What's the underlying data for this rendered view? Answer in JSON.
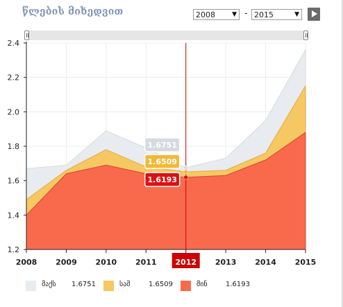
{
  "header": {
    "title": "წლების მიხედვით",
    "from_year": "2008",
    "to_year": "2015",
    "range_sep": "-",
    "play_icon": "play-icon"
  },
  "colors": {
    "max": "#e8ebf0",
    "avg": "#f5c863",
    "min": "#f96a4c",
    "marker": "#cc0000"
  },
  "chart_data": {
    "type": "area",
    "x": [
      2008,
      2009,
      2010,
      2011,
      2012,
      2013,
      2014,
      2015
    ],
    "xtick_labels": [
      "2008",
      "2009",
      "2010",
      "2011",
      "2012",
      "2013",
      "2014",
      "2015"
    ],
    "yticks": [
      "1.2",
      "1.4",
      "1.6",
      "1.8",
      "2.0",
      "2.2",
      "2.4"
    ],
    "ylim": [
      1.2,
      2.4
    ],
    "grid": true,
    "series": [
      {
        "name": "მაქს",
        "values": [
          1.67,
          1.69,
          1.89,
          1.79,
          1.6751,
          1.73,
          1.95,
          2.36
        ]
      },
      {
        "name": "საშ",
        "values": [
          1.49,
          1.66,
          1.78,
          1.68,
          1.6509,
          1.66,
          1.76,
          2.15
        ]
      },
      {
        "name": "მინ",
        "values": [
          1.4,
          1.64,
          1.69,
          1.64,
          1.6193,
          1.63,
          1.72,
          1.88
        ]
      }
    ],
    "crosshair": {
      "year_label": "2012",
      "max_label": "1.6751",
      "avg_label": "1.6509",
      "min_label": "1.6193"
    }
  },
  "legend": [
    {
      "label": "მაქს",
      "value": "1.6751"
    },
    {
      "label": "საშ",
      "value": "1.6509"
    },
    {
      "label": "მინ",
      "value": "1.6193"
    }
  ]
}
